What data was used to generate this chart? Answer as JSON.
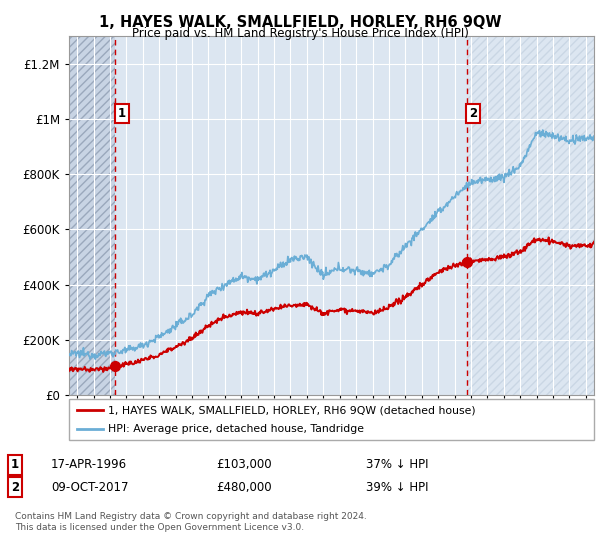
{
  "title": "1, HAYES WALK, SMALLFIELD, HORLEY, RH6 9QW",
  "subtitle": "Price paid vs. HM Land Registry's House Price Index (HPI)",
  "sale1_year": 1996.33,
  "sale1_price": 103000,
  "sale1_label": "17-APR-1996",
  "sale1_pct": "37% ↓ HPI",
  "sale2_year": 2017.75,
  "sale2_price": 480000,
  "sale2_label": "09-OCT-2017",
  "sale2_pct": "39% ↓ HPI",
  "legend_line1": "1, HAYES WALK, SMALLFIELD, HORLEY, RH6 9QW (detached house)",
  "legend_line2": "HPI: Average price, detached house, Tandridge",
  "footer": "Contains HM Land Registry data © Crown copyright and database right 2024.\nThis data is licensed under the Open Government Licence v3.0.",
  "hpi_color": "#6baed6",
  "price_color": "#cc0000",
  "vline_color": "#cc0000",
  "bg_plot_color": "#dce6f1",
  "hatch_color": "#b0bfd0",
  "ylim_max": 1300000,
  "xmin": 1993.5,
  "xmax": 2025.5
}
